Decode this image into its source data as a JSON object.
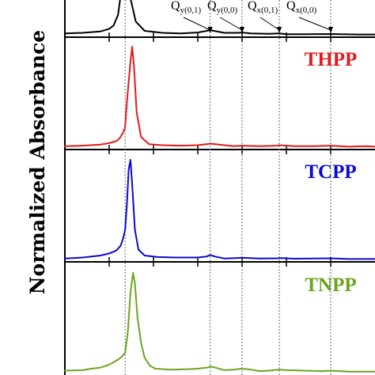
{
  "chart_data": {
    "type": "line",
    "ylabel": "Normalized Absorbance",
    "reference_lines_x": [
      418,
      514,
      550,
      592,
      650
    ],
    "q_bands": [
      {
        "main": "Q",
        "sub": "y(0,1)",
        "x": 514
      },
      {
        "main": "Q",
        "sub": "y(0,0)",
        "x": 550
      },
      {
        "main": "Q",
        "sub": "x(0,1)",
        "x": 592
      },
      {
        "main": "Q",
        "sub": "x(0,0)",
        "x": 650
      }
    ],
    "series": [
      {
        "name": "",
        "color": "#000000",
        "x": [
          350,
          370,
          390,
          400,
          405,
          410,
          413,
          416,
          418,
          421,
          424,
          430,
          440,
          460,
          480,
          500,
          510,
          514,
          518,
          530,
          545,
          550,
          560,
          580,
          592,
          600,
          620,
          650,
          680,
          700
        ],
        "y": [
          0.02,
          0.03,
          0.05,
          0.09,
          0.14,
          0.3,
          0.6,
          0.9,
          1.0,
          0.85,
          0.55,
          0.2,
          0.06,
          0.03,
          0.02,
          0.035,
          0.06,
          0.07,
          0.06,
          0.03,
          0.03,
          0.035,
          0.02,
          0.015,
          0.02,
          0.01,
          0.01,
          0.012,
          0.005,
          0.005
        ]
      },
      {
        "name": "THPP",
        "color": "#e31a1c",
        "x": [
          350,
          370,
          390,
          400,
          408,
          412,
          416,
          418,
          420,
          424,
          426,
          428,
          431,
          436,
          445,
          460,
          480,
          500,
          510,
          514,
          520,
          540,
          550,
          570,
          590,
          592,
          610,
          630,
          650,
          670,
          690,
          700
        ],
        "y": [
          0.01,
          0.015,
          0.025,
          0.04,
          0.06,
          0.09,
          0.15,
          0.2,
          0.45,
          0.85,
          1.0,
          0.8,
          0.35,
          0.1,
          0.03,
          0.02,
          0.015,
          0.02,
          0.03,
          0.035,
          0.03,
          0.01,
          0.015,
          0.01,
          0.015,
          0.02,
          0.01,
          0.01,
          0.015,
          0.005,
          0.01,
          0.005
        ]
      },
      {
        "name": "TCPP",
        "color": "#0a0ad0",
        "x": [
          350,
          370,
          390,
          400,
          408,
          413,
          416,
          418,
          420,
          422,
          424,
          426,
          429,
          433,
          440,
          455,
          475,
          500,
          510,
          514,
          519,
          530,
          545,
          550,
          570,
          590,
          592,
          610,
          630,
          650,
          670,
          700
        ],
        "y": [
          0.01,
          0.02,
          0.04,
          0.06,
          0.09,
          0.14,
          0.22,
          0.3,
          0.55,
          0.9,
          1.0,
          0.75,
          0.3,
          0.1,
          0.04,
          0.025,
          0.02,
          0.02,
          0.03,
          0.045,
          0.03,
          0.01,
          0.015,
          0.018,
          0.01,
          0.012,
          0.015,
          0.008,
          0.01,
          0.012,
          0.005,
          0.005
        ]
      },
      {
        "name": "TNPP",
        "color": "#6aa51e",
        "x": [
          350,
          370,
          380,
          390,
          400,
          408,
          413,
          418,
          421,
          424,
          427,
          429,
          432,
          436,
          440,
          446,
          452,
          470,
          490,
          500,
          510,
          514,
          520,
          530,
          540,
          550,
          560,
          570,
          580,
          592,
          600,
          620,
          640,
          650,
          670,
          700
        ],
        "y": [
          0.02,
          0.025,
          0.04,
          0.05,
          0.08,
          0.12,
          0.15,
          0.2,
          0.4,
          0.8,
          1.0,
          0.9,
          0.55,
          0.3,
          0.15,
          0.07,
          0.04,
          0.03,
          0.035,
          0.04,
          0.05,
          0.06,
          0.05,
          0.025,
          0.03,
          0.04,
          0.03,
          0.015,
          0.02,
          0.03,
          0.025,
          0.02,
          0.015,
          0.02,
          0.01,
          0.01
        ]
      }
    ]
  }
}
